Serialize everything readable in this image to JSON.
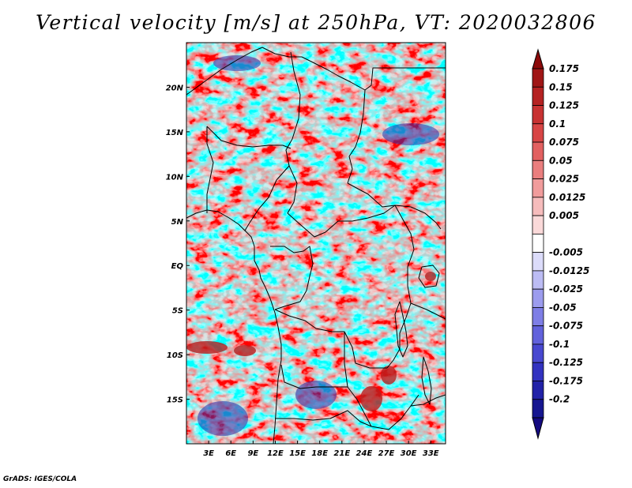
{
  "title": "Vertical velocity [m/s] at 250hPa, VT: 2020032806",
  "footer": "GrADS: IGES/COLA",
  "map": {
    "lon_range": [
      0,
      35
    ],
    "lat_range": [
      -20,
      25
    ],
    "lat_ticks": [
      {
        "lat": 20,
        "label": "20N"
      },
      {
        "lat": 15,
        "label": "15N"
      },
      {
        "lat": 10,
        "label": "10N"
      },
      {
        "lat": 5,
        "label": "5N"
      },
      {
        "lat": 0,
        "label": "EQ"
      },
      {
        "lat": -5,
        "label": "5S"
      },
      {
        "lat": -10,
        "label": "10S"
      },
      {
        "lat": -15,
        "label": "15S"
      }
    ],
    "lon_ticks": [
      {
        "lon": 3,
        "label": "3E"
      },
      {
        "lon": 6,
        "label": "6E"
      },
      {
        "lon": 9,
        "label": "9E"
      },
      {
        "lon": 12,
        "label": "12E"
      },
      {
        "lon": 15,
        "label": "15E"
      },
      {
        "lon": 18,
        "label": "18E"
      },
      {
        "lon": 21,
        "label": "21E"
      },
      {
        "lon": 24,
        "label": "24E"
      },
      {
        "lon": 27,
        "label": "27E"
      },
      {
        "lon": 30,
        "label": "30E"
      },
      {
        "lon": 33,
        "label": "33E"
      }
    ]
  },
  "colorbar": {
    "levels": [
      {
        "label": "0.175",
        "color": "#a01616"
      },
      {
        "label": "0.15",
        "color": "#b52222"
      },
      {
        "label": "0.125",
        "color": "#c83232"
      },
      {
        "label": "0.1",
        "color": "#d84545"
      },
      {
        "label": "0.075",
        "color": "#e26060"
      },
      {
        "label": "0.05",
        "color": "#ea7e7e"
      },
      {
        "label": "0.025",
        "color": "#f19c9c"
      },
      {
        "label": "0.0125",
        "color": "#f6bcbc"
      },
      {
        "label": "0.005",
        "color": "#fad9d9"
      },
      {
        "label": "",
        "color": "#ffffff"
      },
      {
        "label": "-0.005",
        "color": "#dcdcfa"
      },
      {
        "label": "-0.0125",
        "color": "#bcbcf4"
      },
      {
        "label": "-0.025",
        "color": "#9c9cee"
      },
      {
        "label": "-0.05",
        "color": "#7e7ee6"
      },
      {
        "label": "-0.075",
        "color": "#6262dc"
      },
      {
        "label": "-0.1",
        "color": "#4848d0"
      },
      {
        "label": "-0.125",
        "color": "#3232c0"
      },
      {
        "label": "-0.175",
        "color": "#2222a8"
      },
      {
        "label": "-0.2",
        "color": "#161690"
      }
    ],
    "over_color": "#8c0a0a",
    "under_color": "#140a80"
  }
}
